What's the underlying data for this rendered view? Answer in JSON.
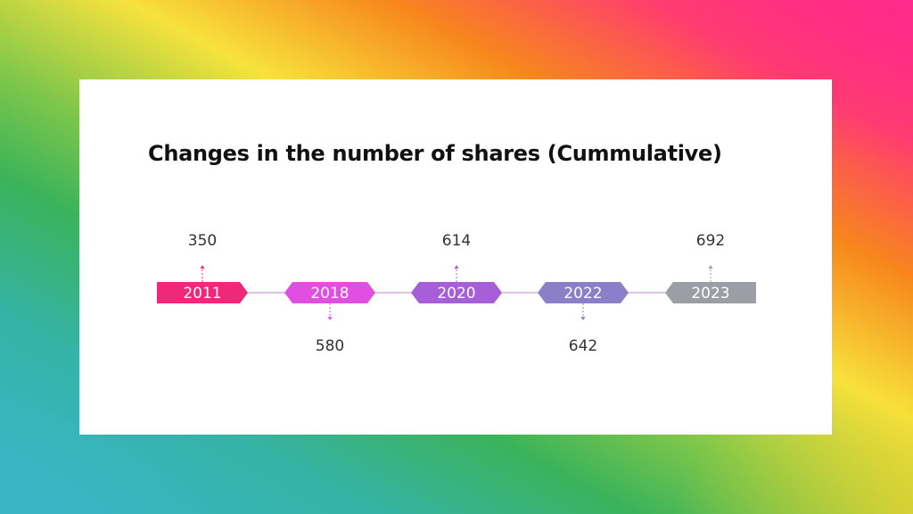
{
  "slide": {
    "title": "Changes in the number of shares (Cummulative)"
  },
  "timeline": {
    "line_color": "#c8a0dc",
    "milestones": [
      {
        "year": "2011",
        "value": "350",
        "color": "#f0287a",
        "label_side": "above"
      },
      {
        "year": "2018",
        "value": "580",
        "color": "#e04fe0",
        "label_side": "below"
      },
      {
        "year": "2020",
        "value": "614",
        "color": "#a65fd6",
        "label_side": "above"
      },
      {
        "year": "2022",
        "value": "642",
        "color": "#8a7fc8",
        "label_side": "below"
      },
      {
        "year": "2023",
        "value": "692",
        "color": "#9c9ea6",
        "label_side": "above"
      }
    ]
  }
}
